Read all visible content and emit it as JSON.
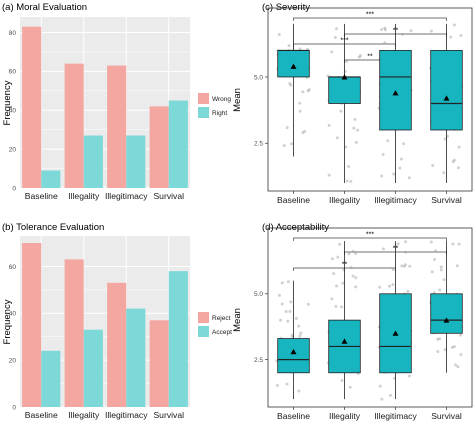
{
  "colors": {
    "bar_first": "#F4A6A0",
    "bar_second": "#7DD8D8",
    "box_fill": "#17B5BF",
    "box_stroke": "#222222",
    "panel_bg": "#EBEBEB",
    "grid": "#FFFFFF",
    "jitter": "#9A9A9A"
  },
  "chart_data": [
    {
      "type": "bar",
      "title": "(a) Moral Evaluation",
      "xlabel": "",
      "ylabel": "Frequency",
      "categories": [
        "Baseline",
        "Illegality",
        "Illegitimacy",
        "Survival"
      ],
      "ylim": [
        0,
        88
      ],
      "yticks": [
        0,
        20,
        40,
        60,
        80
      ],
      "grid": true,
      "legend_position": "right",
      "series": [
        {
          "name": "Wrong",
          "values": [
            83,
            64,
            63,
            42
          ]
        },
        {
          "name": "Right",
          "values": [
            9,
            27,
            27,
            45
          ]
        }
      ]
    },
    {
      "type": "bar",
      "title": "(b) Tolerance Evaluation",
      "xlabel": "",
      "ylabel": "Frequency",
      "categories": [
        "Baseline",
        "Illegality",
        "Illegitimacy",
        "Survival"
      ],
      "ylim": [
        0,
        73
      ],
      "yticks": [
        0,
        20,
        40,
        60
      ],
      "grid": true,
      "legend_position": "right",
      "series": [
        {
          "name": "Reject",
          "values": [
            70,
            63,
            53,
            37
          ]
        },
        {
          "name": "Accept",
          "values": [
            24,
            33,
            42,
            58
          ]
        }
      ]
    },
    {
      "type": "box",
      "title": "(c) Severity",
      "xlabel": "",
      "ylabel": "Mean",
      "categories": [
        "Baseline",
        "Illegality",
        "Illegitimacy",
        "Survival"
      ],
      "ylim": [
        0.7,
        7.6
      ],
      "yticks": [
        2.5,
        5.0
      ],
      "ytick_labels": [
        "2.5",
        "5.0"
      ],
      "grid": false,
      "boxes": [
        {
          "min": 2.0,
          "q1": 5.0,
          "median": 6.0,
          "q3": 6.0,
          "max": 7.0,
          "mean": 5.4
        },
        {
          "min": 1.0,
          "q1": 4.0,
          "median": 5.0,
          "q3": 5.0,
          "max": 7.0,
          "mean": 5.0
        },
        {
          "min": 1.0,
          "q1": 3.0,
          "median": 5.0,
          "q3": 6.0,
          "max": 7.0,
          "mean": 4.4
        },
        {
          "min": 1.0,
          "q1": 3.0,
          "median": 4.0,
          "q3": 6.0,
          "max": 7.0,
          "mean": 4.2
        }
      ],
      "significance": [
        {
          "from": "Baseline",
          "to": "Survival",
          "label": "***"
        },
        {
          "from": "Illegality",
          "to": "Survival",
          "label": "**"
        },
        {
          "from": "Baseline",
          "to": "Illegitimacy",
          "label": "***"
        },
        {
          "from": "Illegality",
          "to": "Illegitimacy",
          "label": "**"
        }
      ]
    },
    {
      "type": "box",
      "title": "(d) Acceptability",
      "xlabel": "",
      "ylabel": "Mean",
      "categories": [
        "Baseline",
        "Illegality",
        "Illegitimacy",
        "Survival"
      ],
      "ylim": [
        0.7,
        7.5
      ],
      "yticks": [
        2.5,
        5.0
      ],
      "ytick_labels": [
        "2.5",
        "5.0"
      ],
      "grid": false,
      "boxes": [
        {
          "min": 1.0,
          "q1": 2.0,
          "median": 2.5,
          "q3": 3.3,
          "max": 5.5,
          "mean": 2.8
        },
        {
          "min": 1.0,
          "q1": 2.0,
          "median": 3.0,
          "q3": 4.0,
          "max": 7.0,
          "mean": 3.2
        },
        {
          "min": 1.0,
          "q1": 2.0,
          "median": 3.0,
          "q3": 5.0,
          "max": 7.0,
          "mean": 3.5
        },
        {
          "min": 2.0,
          "q1": 3.5,
          "median": 4.0,
          "q3": 5.0,
          "max": 7.0,
          "mean": 4.0
        }
      ],
      "significance": [
        {
          "from": "Baseline",
          "to": "Survival",
          "label": "***"
        },
        {
          "from": "Illegality",
          "to": "Survival",
          "label": "**"
        },
        {
          "from": "Baseline",
          "to": "Illegitimacy",
          "label": "**"
        }
      ]
    }
  ]
}
